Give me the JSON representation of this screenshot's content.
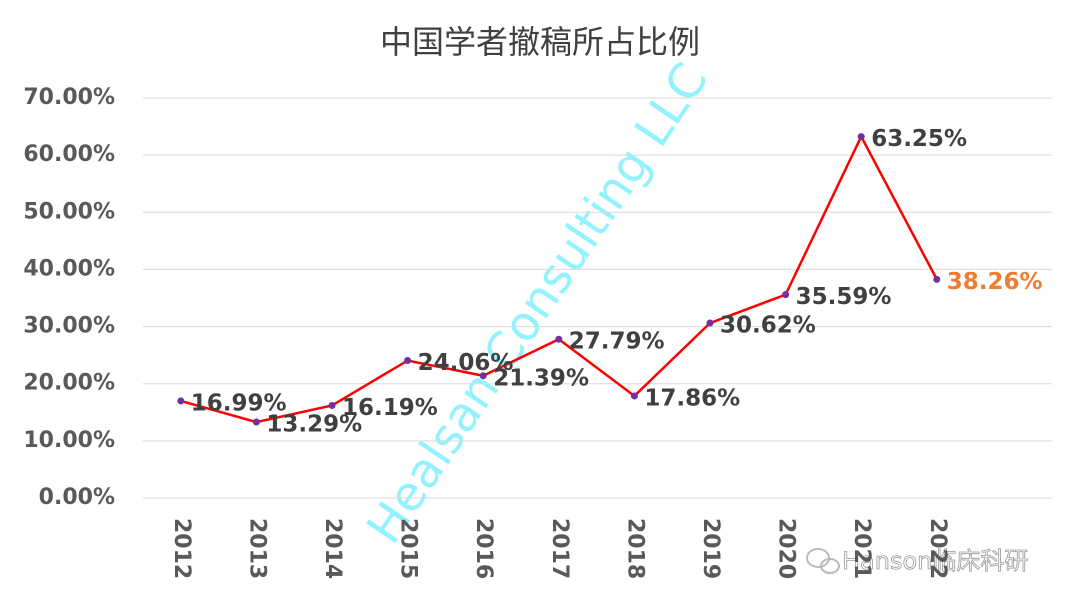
{
  "chart_data": {
    "type": "line",
    "title": "中国学者撤稿所占比例",
    "categories": [
      "2012",
      "2013",
      "2014",
      "2015",
      "2016",
      "2017",
      "2018",
      "2019",
      "2020",
      "2021",
      "2022"
    ],
    "series": [
      {
        "name": "中国学者撤稿所占比例",
        "color": "#ff0000",
        "marker_color": "#7030a0",
        "values": [
          16.99,
          13.29,
          16.19,
          24.06,
          21.39,
          27.79,
          17.86,
          30.62,
          35.59,
          63.25,
          38.26
        ],
        "value_labels": [
          "16.99%",
          "13.29%",
          "16.19%",
          "24.06%",
          "21.39%",
          "27.79%",
          "17.86%",
          "30.62%",
          "35.59%",
          "63.25%",
          "38.26%"
        ],
        "value_label_colors": [
          "#404040",
          "#404040",
          "#404040",
          "#404040",
          "#404040",
          "#404040",
          "#404040",
          "#404040",
          "#404040",
          "#404040",
          "#ed7d31"
        ]
      }
    ],
    "ylim": [
      0,
      70
    ],
    "yticks": [
      {
        "value": 0,
        "label": "0.00%"
      },
      {
        "value": 10,
        "label": "10.00%"
      },
      {
        "value": 20,
        "label": "20.00%"
      },
      {
        "value": 30,
        "label": "30.00%"
      },
      {
        "value": 40,
        "label": "40.00%"
      },
      {
        "value": 50,
        "label": "50.00%"
      },
      {
        "value": 60,
        "label": "60.00%"
      },
      {
        "value": 70,
        "label": "70.00%"
      }
    ],
    "grid": true,
    "watermark": "Healsan Consulting LLC",
    "source_mark": "Hanson临床科研"
  }
}
